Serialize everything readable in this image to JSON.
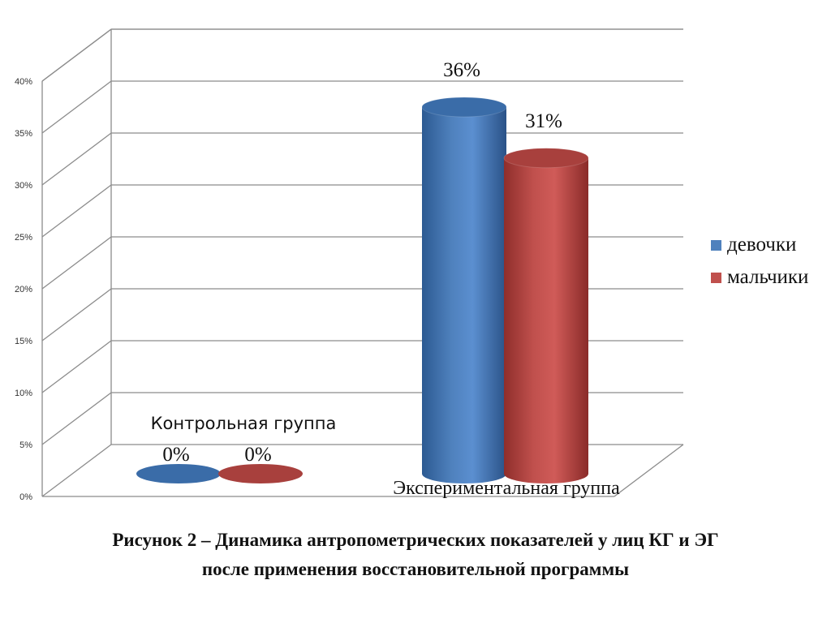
{
  "chart_data": {
    "type": "bar",
    "categories": [
      "Контрольная группа",
      "Экспериментальная группа"
    ],
    "series": [
      {
        "name": "девочки",
        "values": [
          0,
          36
        ],
        "labels": [
          "0%",
          "36%"
        ],
        "color": "#4f81bd"
      },
      {
        "name": "мальчики",
        "values": [
          0,
          31
        ],
        "labels": [
          "0%",
          "31%"
        ],
        "color": "#c0504d"
      }
    ],
    "y_ticks": [
      "0%",
      "5%",
      "10%",
      "15%",
      "20%",
      "25%",
      "30%",
      "35%",
      "40%"
    ],
    "ylim": [
      0,
      40
    ],
    "grid": true,
    "legend_position": "right",
    "shape": "3d-cylinder"
  },
  "caption": {
    "line1": "Рисунок 2 – Динамика антропометрических показателей у лиц КГ и ЭГ",
    "line2": "после применения восстановительной программы"
  }
}
